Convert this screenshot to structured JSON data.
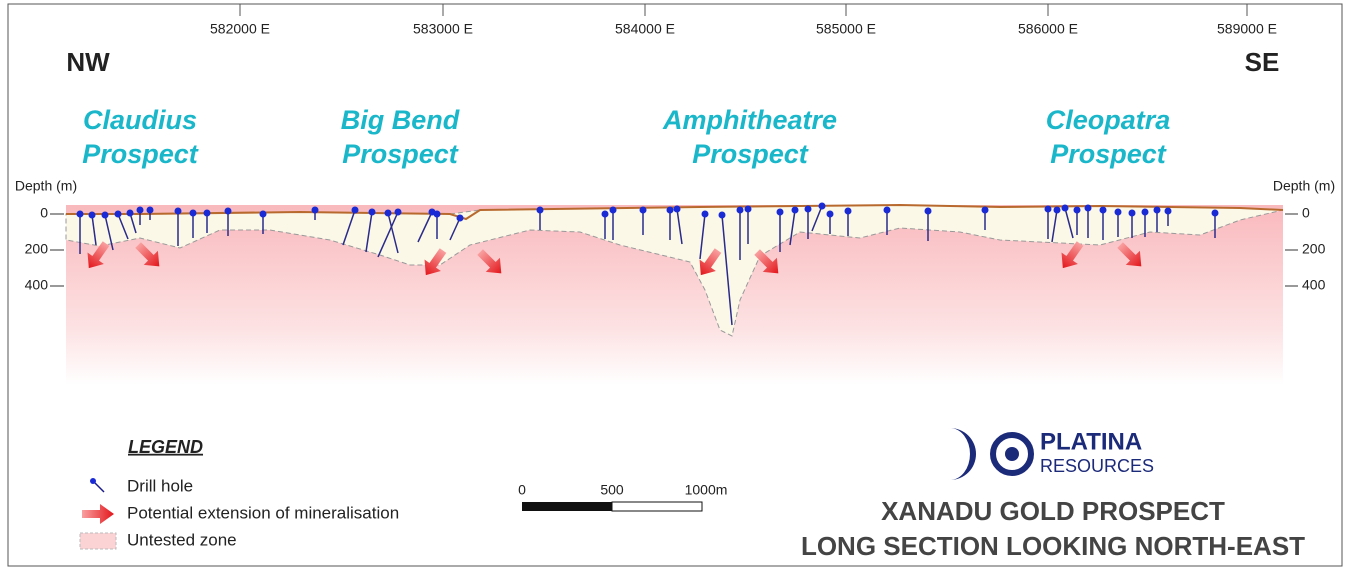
{
  "eastings": [
    "582000 E",
    "583000 E",
    "584000 E",
    "585000 E",
    "586000 E",
    "589000 E"
  ],
  "direction": {
    "left": "NW",
    "right": "SE"
  },
  "prospects": [
    {
      "name": "Claudius",
      "suffix": "Prospect"
    },
    {
      "name": "Big Bend",
      "suffix": "Prospect"
    },
    {
      "name": "Amphitheatre",
      "suffix": "Prospect"
    },
    {
      "name": "Cleopatra",
      "suffix": "Prospect"
    }
  ],
  "depth_axis": {
    "title": "Depth (m)",
    "labels": [
      "0",
      "200",
      "400"
    ]
  },
  "legend": {
    "title": "LEGEND",
    "items": [
      "Drill hole",
      "Potential extension of mineralisation",
      "Untested zone"
    ]
  },
  "scale_bar": {
    "labels": [
      "0",
      "500",
      "1000m"
    ]
  },
  "logo": {
    "name": "PLATINA",
    "sub": "RESOURCES"
  },
  "title": [
    "XANADU GOLD PROSPECT",
    "LONG SECTION LOOKING NORTH-EAST"
  ]
}
